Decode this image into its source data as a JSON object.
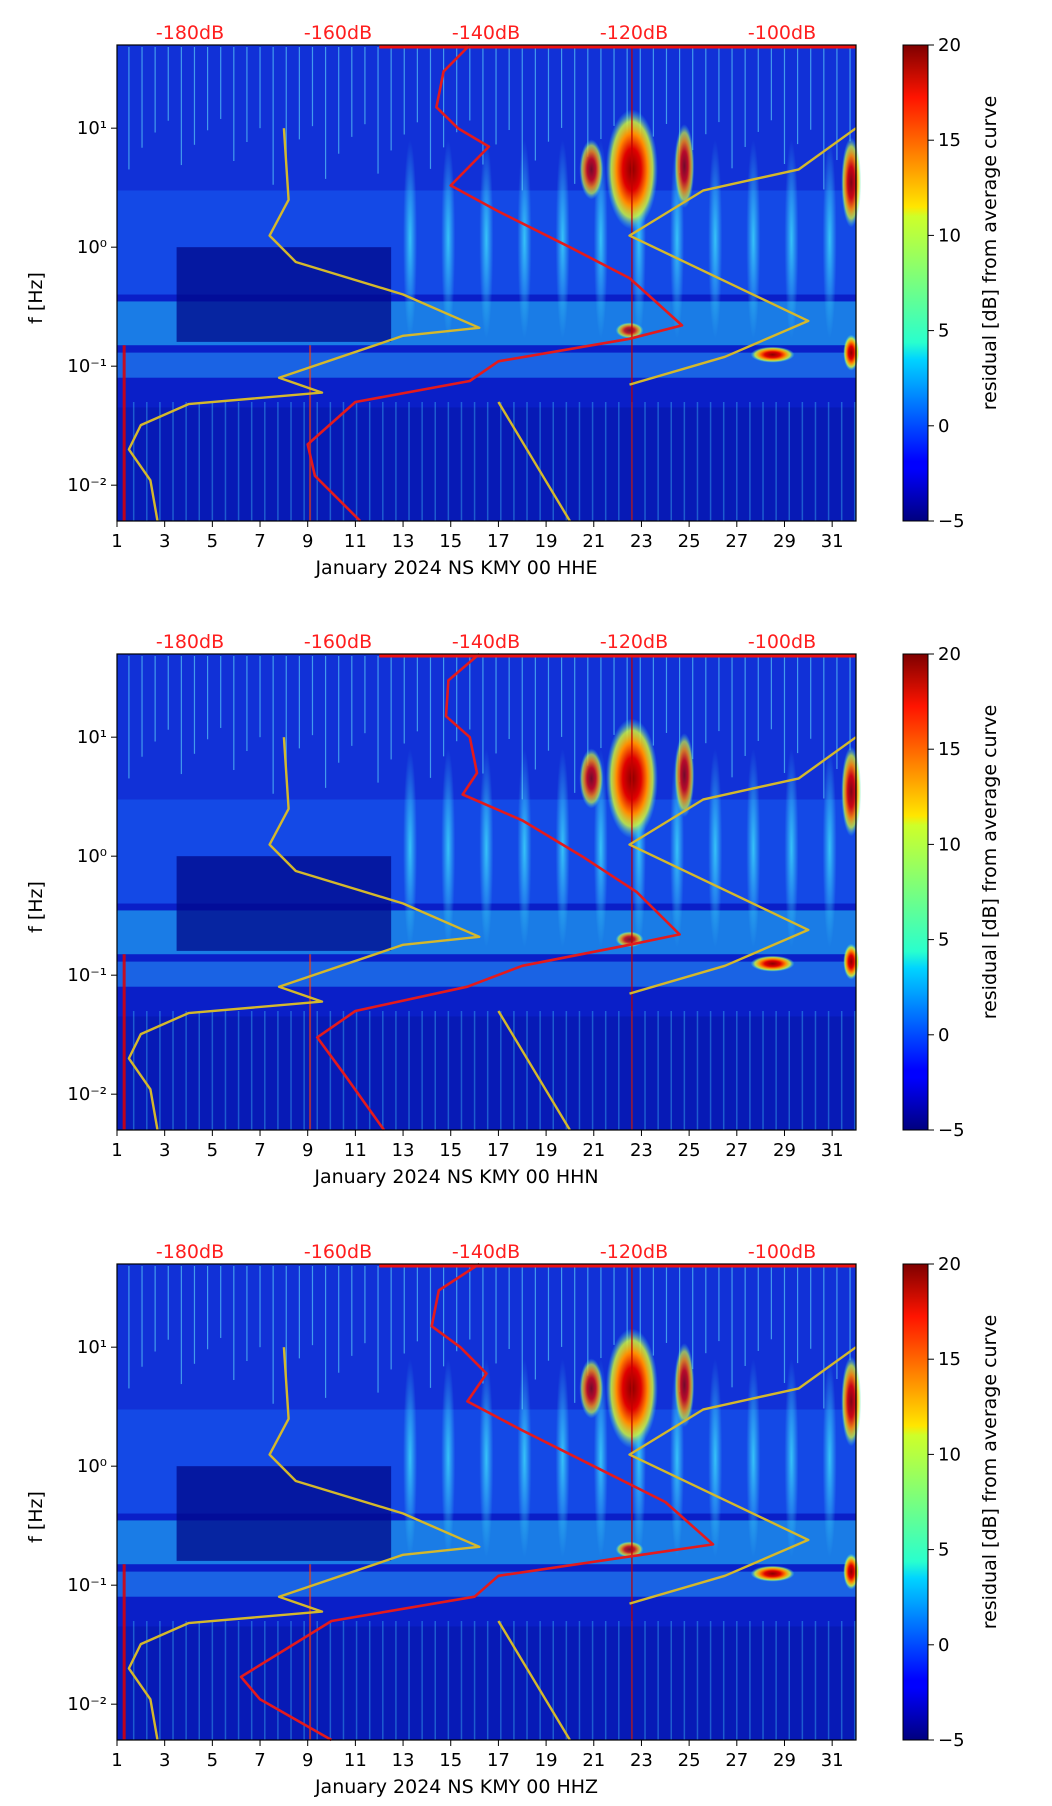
{
  "chart_data": [
    {
      "type": "heatmap",
      "title": "",
      "xlabel": "January 2024 NS KMY 00 HHE",
      "ylabel": "f [Hz]",
      "x_ticks": [
        "1",
        "3",
        "5",
        "7",
        "9",
        "11",
        "13",
        "15",
        "17",
        "19",
        "21",
        "23",
        "25",
        "27",
        "29",
        "31"
      ],
      "y_ticks": [
        "10⁻²",
        "10⁻¹",
        "10⁰",
        "10¹"
      ],
      "xlim": [
        1,
        32
      ],
      "ylim": [
        0.005,
        50
      ],
      "y_scale": "log",
      "top_axis_labels": [
        "-180dB",
        "-160dB",
        "-140dB",
        "-120dB",
        "-100dB"
      ],
      "colorbar": {
        "label": "residual [dB] from average curve",
        "ticks": [
          "−5",
          "0",
          "5",
          "10",
          "15",
          "20"
        ],
        "range": [
          -5,
          20
        ],
        "colormap": "jet"
      },
      "series": [
        {
          "color": "#e41a1c",
          "points": [
            [
              15.8,
              50
            ],
            [
              14.7,
              30
            ],
            [
              14.4,
              15
            ],
            [
              15.3,
              10
            ],
            [
              16.6,
              7
            ],
            [
              15.0,
              3.3
            ],
            [
              17.0,
              2.0
            ],
            [
              20.0,
              1.0
            ],
            [
              22.5,
              0.55
            ],
            [
              24.7,
              0.22
            ],
            [
              22.5,
              0.17
            ],
            [
              17.0,
              0.11
            ],
            [
              15.8,
              0.075
            ],
            [
              11.0,
              0.05
            ],
            [
              9.0,
              0.022
            ],
            [
              9.3,
              0.012
            ],
            [
              11.2,
              0.005
            ]
          ]
        },
        {
          "color": "#d4b82c",
          "points": [
            [
              8.0,
              10
            ],
            [
              8.2,
              2.5
            ],
            [
              7.4,
              1.25
            ],
            [
              8.5,
              0.75
            ],
            [
              13.0,
              0.4
            ],
            [
              16.2,
              0.21
            ],
            [
              13.0,
              0.18
            ],
            [
              7.8,
              0.08
            ],
            [
              9.6,
              0.06
            ],
            [
              4.0,
              0.048
            ],
            [
              2.0,
              0.032
            ],
            [
              1.5,
              0.02
            ],
            [
              2.4,
              0.011
            ],
            [
              2.7,
              0.005
            ]
          ]
        },
        {
          "color": "#d4b82c",
          "points": [
            [
              17.0,
              0.05
            ],
            [
              20.0,
              0.005
            ]
          ]
        },
        {
          "color": "#d4b82c",
          "points": [
            [
              22.5,
              0.07
            ],
            [
              26.5,
              0.12
            ],
            [
              30.0,
              0.24
            ],
            [
              22.5,
              1.25
            ],
            [
              25.6,
              3.0
            ],
            [
              29.6,
              4.5
            ],
            [
              32,
              10
            ]
          ]
        }
      ]
    },
    {
      "type": "heatmap",
      "title": "",
      "xlabel": "January 2024 NS KMY 00 HHN",
      "ylabel": "f [Hz]",
      "x_ticks": [
        "1",
        "3",
        "5",
        "7",
        "9",
        "11",
        "13",
        "15",
        "17",
        "19",
        "21",
        "23",
        "25",
        "27",
        "29",
        "31"
      ],
      "y_ticks": [
        "10⁻²",
        "10⁻¹",
        "10⁰",
        "10¹"
      ],
      "xlim": [
        1,
        32
      ],
      "ylim": [
        0.005,
        50
      ],
      "y_scale": "log",
      "top_axis_labels": [
        "-180dB",
        "-160dB",
        "-140dB",
        "-120dB",
        "-100dB"
      ],
      "colorbar": {
        "label": "residual [dB] from average curve",
        "ticks": [
          "−5",
          "0",
          "5",
          "10",
          "15",
          "20"
        ],
        "range": [
          -5,
          20
        ],
        "colormap": "jet"
      },
      "series": [
        {
          "color": "#e41a1c",
          "points": [
            [
              16.2,
              50
            ],
            [
              14.9,
              30
            ],
            [
              14.8,
              15
            ],
            [
              15.8,
              10
            ],
            [
              16.1,
              5
            ],
            [
              15.5,
              3.3
            ],
            [
              18.0,
              2.0
            ],
            [
              20.5,
              1.0
            ],
            [
              22.8,
              0.5
            ],
            [
              24.6,
              0.22
            ],
            [
              22.5,
              0.18
            ],
            [
              18.0,
              0.12
            ],
            [
              15.7,
              0.08
            ],
            [
              11.0,
              0.05
            ],
            [
              9.4,
              0.03
            ],
            [
              10.5,
              0.015
            ],
            [
              12.2,
              0.005
            ]
          ]
        },
        {
          "color": "#d4b82c",
          "points": [
            [
              8.0,
              10
            ],
            [
              8.2,
              2.5
            ],
            [
              7.4,
              1.25
            ],
            [
              8.5,
              0.75
            ],
            [
              13.0,
              0.4
            ],
            [
              16.2,
              0.21
            ],
            [
              13.0,
              0.18
            ],
            [
              7.8,
              0.08
            ],
            [
              9.6,
              0.06
            ],
            [
              4.0,
              0.048
            ],
            [
              2.0,
              0.032
            ],
            [
              1.5,
              0.02
            ],
            [
              2.4,
              0.011
            ],
            [
              2.7,
              0.005
            ]
          ]
        },
        {
          "color": "#d4b82c",
          "points": [
            [
              17.0,
              0.05
            ],
            [
              20.0,
              0.005
            ]
          ]
        },
        {
          "color": "#d4b82c",
          "points": [
            [
              22.5,
              0.07
            ],
            [
              26.5,
              0.12
            ],
            [
              30.0,
              0.24
            ],
            [
              22.5,
              1.25
            ],
            [
              25.6,
              3.0
            ],
            [
              29.6,
              4.5
            ],
            [
              32,
              10
            ]
          ]
        }
      ]
    },
    {
      "type": "heatmap",
      "title": "",
      "xlabel": "January 2024 NS KMY 00 HHZ",
      "ylabel": "f [Hz]",
      "x_ticks": [
        "1",
        "3",
        "5",
        "7",
        "9",
        "11",
        "13",
        "15",
        "17",
        "19",
        "21",
        "23",
        "25",
        "27",
        "29",
        "31"
      ],
      "y_ticks": [
        "10⁻²",
        "10⁻¹",
        "10⁰",
        "10¹"
      ],
      "xlim": [
        1,
        32
      ],
      "ylim": [
        0.005,
        50
      ],
      "y_scale": "log",
      "top_axis_labels": [
        "-180dB",
        "-160dB",
        "-140dB",
        "-120dB",
        "-100dB"
      ],
      "colorbar": {
        "label": "residual [dB] from average curve",
        "ticks": [
          "−5",
          "0",
          "5",
          "10",
          "15",
          "20"
        ],
        "range": [
          -5,
          20
        ],
        "colormap": "jet"
      },
      "series": [
        {
          "color": "#e41a1c",
          "points": [
            [
              16.2,
              50
            ],
            [
              14.5,
              30
            ],
            [
              14.2,
              15
            ],
            [
              15.4,
              10
            ],
            [
              16.5,
              6
            ],
            [
              15.7,
              3.5
            ],
            [
              18.0,
              2.0
            ],
            [
              21.0,
              1.0
            ],
            [
              24.0,
              0.5
            ],
            [
              26.0,
              0.22
            ],
            [
              23.0,
              0.18
            ],
            [
              17.0,
              0.12
            ],
            [
              16.0,
              0.08
            ],
            [
              10.0,
              0.05
            ],
            [
              6.2,
              0.017
            ],
            [
              7.0,
              0.011
            ],
            [
              10.0,
              0.005
            ]
          ]
        },
        {
          "color": "#d4b82c",
          "points": [
            [
              8.0,
              10
            ],
            [
              8.2,
              2.5
            ],
            [
              7.4,
              1.25
            ],
            [
              8.5,
              0.75
            ],
            [
              13.0,
              0.4
            ],
            [
              16.2,
              0.21
            ],
            [
              13.0,
              0.18
            ],
            [
              7.8,
              0.08
            ],
            [
              9.6,
              0.06
            ],
            [
              4.0,
              0.048
            ],
            [
              2.0,
              0.032
            ],
            [
              1.5,
              0.02
            ],
            [
              2.4,
              0.011
            ],
            [
              2.7,
              0.005
            ]
          ]
        },
        {
          "color": "#d4b82c",
          "points": [
            [
              17.0,
              0.05
            ],
            [
              20.0,
              0.005
            ]
          ]
        },
        {
          "color": "#d4b82c",
          "points": [
            [
              22.5,
              0.07
            ],
            [
              26.5,
              0.12
            ],
            [
              30.0,
              0.24
            ],
            [
              22.5,
              1.25
            ],
            [
              25.6,
              3.0
            ],
            [
              29.6,
              4.5
            ],
            [
              32,
              10
            ]
          ]
        }
      ]
    }
  ]
}
